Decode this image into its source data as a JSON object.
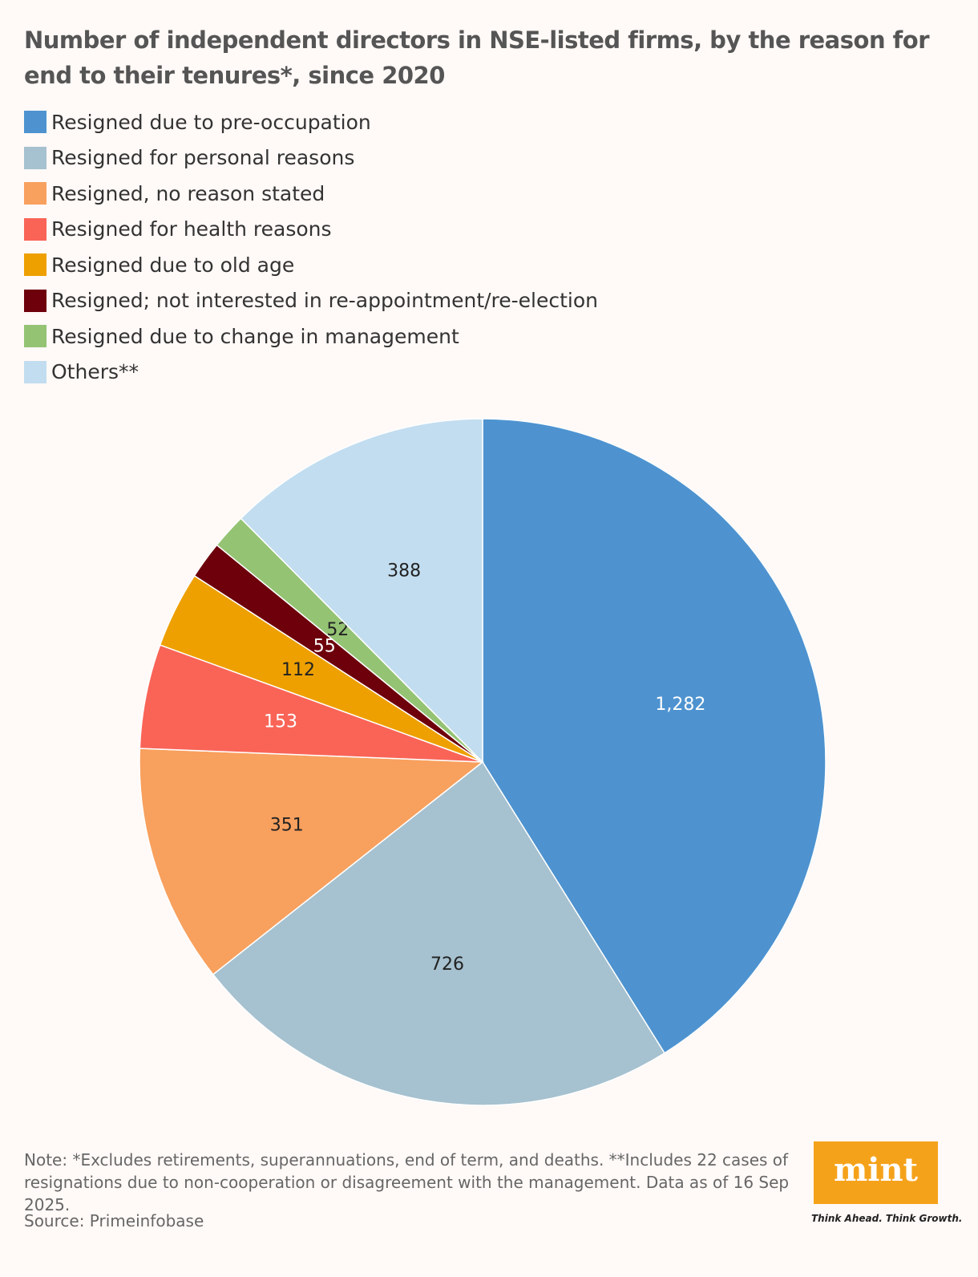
{
  "chart_data": {
    "type": "pie",
    "title": "Number of independent directors in NSE-listed firms, by the reason for end to their tenures*, since 2020",
    "categories": [
      "Resigned due to pre-occupation",
      "Resigned for personal reasons",
      "Resigned, no reason stated",
      "Resigned for health reasons",
      "Resigned due to old age",
      "Resigned; not interested in re-appointment/re-election",
      "Resigned due to change in management",
      "Others**"
    ],
    "values": [
      1282,
      726,
      351,
      153,
      112,
      55,
      52,
      388
    ],
    "value_labels": [
      "1,282",
      "726",
      "351",
      "153",
      "112",
      "55",
      "52",
      "388"
    ],
    "colors": [
      "#4e93d0",
      "#a6c1cf",
      "#f8a05e",
      "#f96457",
      "#eea000",
      "#6d000b",
      "#94c374",
      "#c2ddef"
    ],
    "note": "Note: *Excludes retirements, superannuations, end of term, and deaths. **Includes 22 cases of resignations due to non-cooperation or disagreement with the management. Data as of 16 Sep 2025.",
    "source": "Source: Primeinfobase",
    "brand": "mint",
    "tagline": "Think Ahead. Think Growth."
  }
}
